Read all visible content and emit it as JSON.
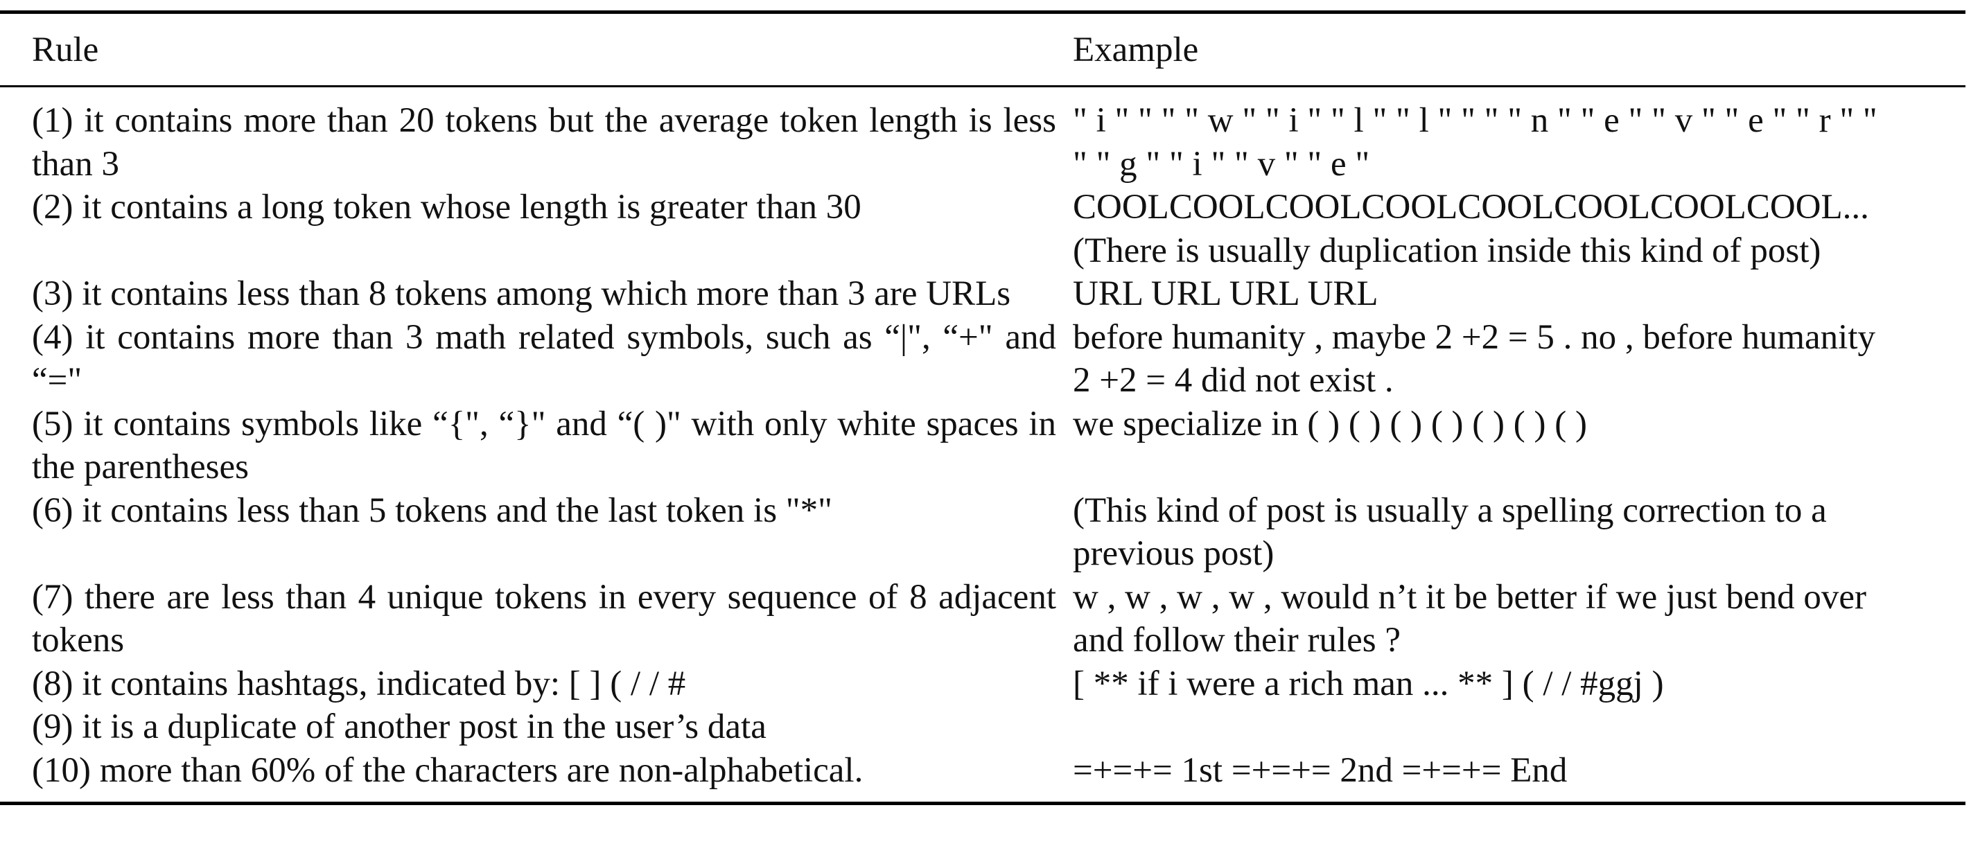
{
  "table": {
    "headers": {
      "rule": "Rule",
      "example": "Example"
    },
    "rows": [
      {
        "rule": "(1) it contains more than 20 tokens but the average token length is less than 3",
        "example_lines": [
          "\" i \" \" \" \" w \" \" i \" \" l \" \" l \" \" \" \" n \" \" e \" \" v \" \" e \" \" r \" \"",
          "\" \" g \" \" i \" \" v \" \" e \""
        ]
      },
      {
        "rule": "(2) it contains a long token whose length is greater than 30",
        "example_lines": [
          "COOLCOOLCOOLCOOLCOOLCOOLCOOLCOOL...",
          "(There is usually duplication inside this kind of post)"
        ]
      },
      {
        "rule": "(3) it contains less than 8 tokens among which more than 3 are URLs",
        "example_lines": [
          "URL URL URL URL"
        ]
      },
      {
        "rule": "(4) it contains more than 3 math related symbols, such as “|\", “+\" and “=\"",
        "example_lines": [
          "before humanity , maybe 2 +2 = 5 . no , before humanity",
          "2 +2 = 4 did not exist ."
        ]
      },
      {
        "rule": "(5) it contains symbols like “{\", “}\" and “( )\" with only white spaces in the parentheses",
        "example_lines": [
          "we specialize in ( ) ( ) ( ) ( ) ( ) ( ) ( )"
        ]
      },
      {
        "rule": "(6) it contains less than 5 tokens and the last token is \"*\"",
        "example_lines": [
          "(This kind of post is usually a spelling correction to a",
          "previous post)"
        ]
      },
      {
        "rule": "(7) there are less than 4 unique tokens in every sequence of 8 adjacent tokens",
        "example_lines": [
          "w , w , w , w , would n’t it be better if we just bend over",
          "and follow their rules ?"
        ]
      },
      {
        "rule": "(8) it contains hashtags, indicated by: [ ] ( / / #",
        "example_lines": [
          "[ ** if i were a rich man ... ** ] ( / / #ggj )"
        ]
      },
      {
        "rule": "(9) it is a duplicate of another post in the user’s data",
        "example_lines": []
      },
      {
        "rule": "(10) more than 60% of the characters are non-alphabetical.",
        "example_lines": [
          "=+=+= 1st =+=+= 2nd =+=+= End"
        ]
      }
    ]
  }
}
